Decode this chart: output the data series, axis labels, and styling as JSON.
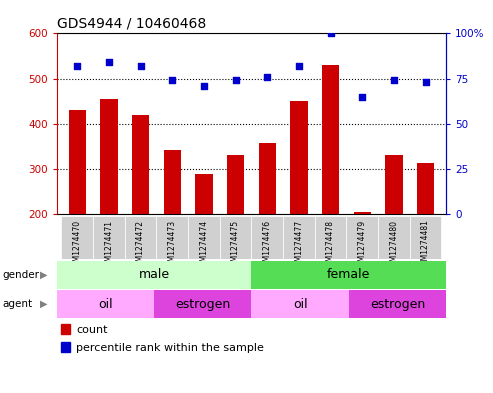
{
  "title": "GDS4944 / 10460468",
  "samples": [
    "GSM1274470",
    "GSM1274471",
    "GSM1274472",
    "GSM1274473",
    "GSM1274474",
    "GSM1274475",
    "GSM1274476",
    "GSM1274477",
    "GSM1274478",
    "GSM1274479",
    "GSM1274480",
    "GSM1274481"
  ],
  "counts": [
    430,
    455,
    420,
    342,
    290,
    330,
    358,
    450,
    530,
    205,
    330,
    313
  ],
  "percentile_ranks": [
    82,
    84,
    82,
    74,
    71,
    74,
    76,
    82,
    100,
    65,
    74,
    73
  ],
  "ylim_left": [
    200,
    600
  ],
  "ylim_right": [
    0,
    100
  ],
  "yticks_left": [
    200,
    300,
    400,
    500,
    600
  ],
  "yticks_right": [
    0,
    25,
    50,
    75,
    100
  ],
  "bar_color": "#cc0000",
  "dot_color": "#0000cc",
  "gender_colors": {
    "male": "#ccffcc",
    "female": "#55dd55"
  },
  "agent_colors": {
    "oil": "#ffaaff",
    "estrogen": "#dd44dd"
  },
  "legend_count_color": "#cc0000",
  "legend_dot_color": "#0000cc",
  "plot_bg_color": "#ffffff",
  "left_label_color": "#cc0000",
  "right_label_color": "#0000cc",
  "sample_box_color": "#d0d0d0",
  "grid_color": "#000000"
}
